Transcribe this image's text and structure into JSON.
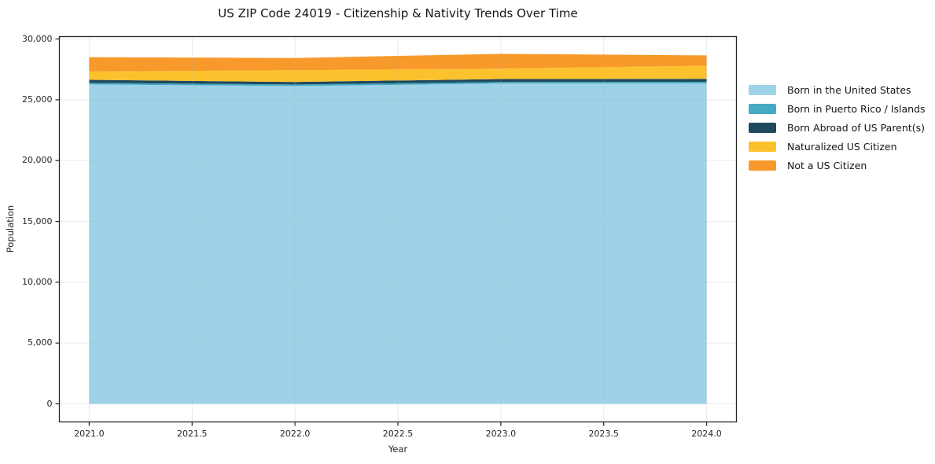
{
  "chart_data": {
    "type": "area",
    "stacked": true,
    "title": "US ZIP Code 24019 - Citizenship & Nativity Trends Over Time",
    "xlabel": "Year",
    "ylabel": "Population",
    "x": [
      2021,
      2022,
      2023,
      2024
    ],
    "series": [
      {
        "name": "Born in the United States",
        "color": "#9ED2E8",
        "values": [
          26260,
          26130,
          26330,
          26350
        ]
      },
      {
        "name": "Born in Puerto Rico / Islands",
        "color": "#47A9C4",
        "values": [
          130,
          130,
          130,
          130
        ]
      },
      {
        "name": "Born Abroad of US Parent(s)",
        "color": "#1F4A5E",
        "values": [
          255,
          210,
          250,
          250
        ]
      },
      {
        "name": "Naturalized US Citizen",
        "color": "#FCC22D",
        "values": [
          685,
          965,
          855,
          1075
        ]
      },
      {
        "name": "Not a US Citizen",
        "color": "#F8992B",
        "values": [
          1175,
          1005,
          1215,
          850
        ]
      }
    ],
    "totals": [
      28505,
      28440,
      28780,
      28655
    ],
    "xlim": [
      2020.855,
      2024.145
    ],
    "ylim": [
      -1486,
      30200
    ],
    "x_ticks": {
      "values": [
        2021,
        2021.5,
        2022,
        2022.5,
        2023,
        2023.5,
        2024
      ],
      "labels": [
        "2021.0",
        "2021.5",
        "2022.0",
        "2022.5",
        "2023.0",
        "2023.5",
        "2024.0"
      ]
    },
    "y_ticks": {
      "values": [
        0,
        5000,
        10000,
        15000,
        20000,
        25000,
        30000
      ],
      "labels": [
        "0",
        "5,000",
        "10,000",
        "15,000",
        "20,000",
        "25,000",
        "30,000"
      ]
    },
    "grid": true,
    "legend_position": "right-outside",
    "spine_color": "#262626",
    "grid_color": "#b4b4b4"
  }
}
